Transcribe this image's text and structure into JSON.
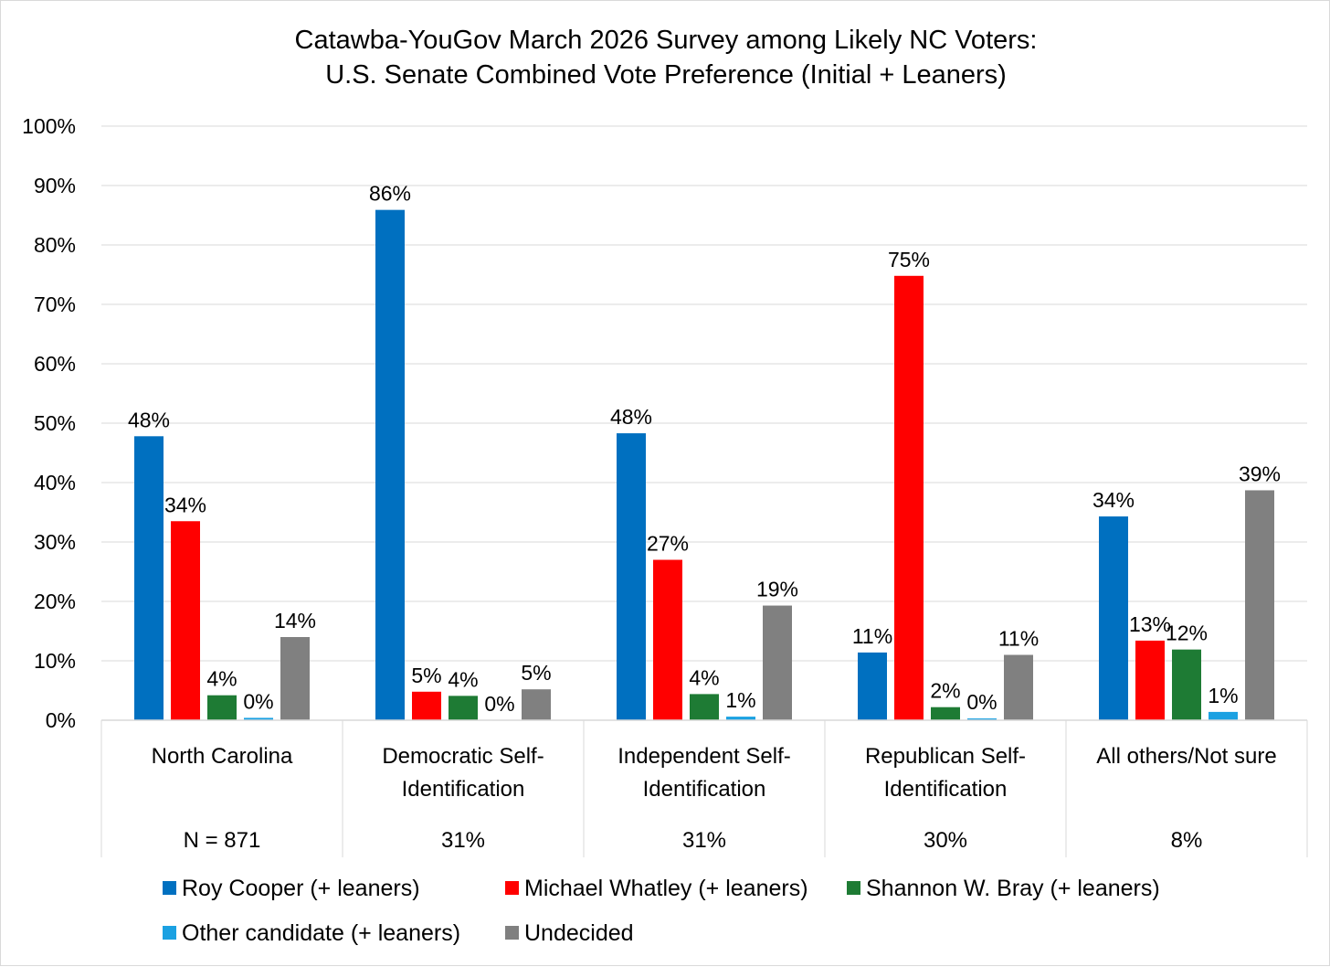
{
  "chart_data": {
    "type": "bar",
    "title": [
      "Catawba-YouGov March 2026 Survey among Likely NC Voters:",
      "U.S. Senate Combined Vote Preference (Initial + Leaners)"
    ],
    "categories": [
      [
        "North Carolina"
      ],
      [
        "Democratic Self-",
        "Identification"
      ],
      [
        "Independent Self-",
        "Identification"
      ],
      [
        "Republican Self-",
        "Identification"
      ],
      [
        "All others/Not sure"
      ]
    ],
    "category_sublabels": [
      "N = 871",
      "31%",
      "31%",
      "30%",
      "8%"
    ],
    "ylim": [
      0,
      100
    ],
    "yticks": [
      0,
      10,
      20,
      30,
      40,
      50,
      60,
      70,
      80,
      90,
      100
    ],
    "ytick_suffix": "%",
    "grid": true,
    "legend_position": "bottom",
    "series": [
      {
        "name": "Roy Cooper (+ leaners)",
        "color": "#0070C0",
        "values": [
          47.8,
          85.9,
          48.3,
          11.4,
          34.3
        ],
        "labels": [
          "48%",
          "86%",
          "48%",
          "11%",
          "34%"
        ]
      },
      {
        "name": "Michael Whatley (+ leaners)",
        "color": "#FF0000",
        "values": [
          33.5,
          4.8,
          27.0,
          74.8,
          13.4
        ],
        "labels": [
          "34%",
          "5%",
          "27%",
          "75%",
          "13%"
        ]
      },
      {
        "name": "Shannon W. Bray (+ leaners)",
        "color": "#1E7B34",
        "values": [
          4.2,
          4.1,
          4.4,
          2.2,
          11.9
        ],
        "labels": [
          "4%",
          "4%",
          "4%",
          "2%",
          "12%"
        ]
      },
      {
        "name": "Other candidate (+ leaners)",
        "color": "#1BA1E2",
        "values": [
          0.4,
          0.0,
          0.6,
          0.3,
          1.4
        ],
        "labels": [
          "0%",
          "0%",
          "1%",
          "0%",
          "1%"
        ]
      },
      {
        "name": "Undecided",
        "color": "#808080",
        "values": [
          14.0,
          5.2,
          19.3,
          11.0,
          38.7
        ],
        "labels": [
          "14%",
          "5%",
          "19%",
          "11%",
          "39%"
        ]
      }
    ]
  }
}
